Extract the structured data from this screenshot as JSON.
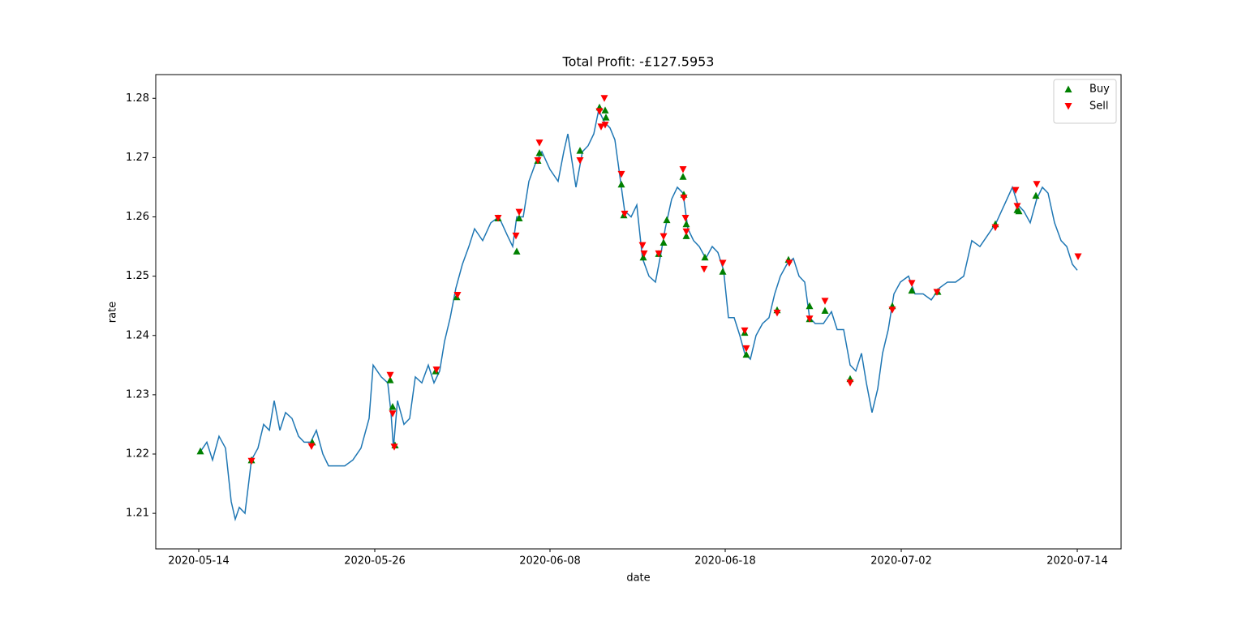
{
  "chart_data": {
    "type": "line",
    "title": "Total Profit: -£127.5953",
    "x_label": "date",
    "y_label": "rate",
    "xlim": [
      -53,
      1137
    ],
    "ylim": [
      1.204,
      1.284
    ],
    "xticks": [
      {
        "value": 0,
        "label": "2020-05-14"
      },
      {
        "value": 217,
        "label": "2020-05-26"
      },
      {
        "value": 433,
        "label": "2020-06-08"
      },
      {
        "value": 649,
        "label": "2020-06-18"
      },
      {
        "value": 866,
        "label": "2020-07-02"
      },
      {
        "value": 1083,
        "label": "2020-07-14"
      }
    ],
    "yticks": [
      1.21,
      1.22,
      1.23,
      1.24,
      1.25,
      1.26,
      1.27,
      1.28
    ],
    "legend": "upper right",
    "grid": false,
    "series": [
      {
        "type": "line",
        "color": "#1f77b4",
        "x": [
          0,
          10,
          17,
          25,
          33,
          40,
          45,
          50,
          57,
          65,
          73,
          80,
          87,
          93,
          100,
          107,
          115,
          123,
          130,
          138,
          145,
          153,
          160,
          170,
          180,
          190,
          200,
          210,
          215,
          225,
          233,
          237,
          240,
          245,
          253,
          260,
          267,
          275,
          283,
          290,
          297,
          303,
          310,
          317,
          325,
          333,
          340,
          350,
          360,
          370,
          380,
          387,
          392,
          400,
          407,
          415,
          423,
          433,
          443,
          450,
          455,
          465,
          473,
          480,
          487,
          493,
          500,
          507,
          513,
          520,
          525,
          533,
          540,
          547,
          555,
          563,
          570,
          575,
          583,
          590,
          597,
          603,
          610,
          617,
          625,
          633,
          640,
          647,
          653,
          660,
          667,
          673,
          680,
          687,
          695,
          703,
          710,
          717,
          725,
          733,
          740,
          747,
          753,
          760,
          770,
          780,
          787,
          795,
          803,
          810,
          817,
          823,
          830,
          837,
          843,
          850,
          857,
          865,
          875,
          883,
          893,
          903,
          913,
          923,
          933,
          943,
          953,
          963,
          973,
          983,
          993,
          1003,
          1010,
          1017,
          1025,
          1033,
          1040,
          1047,
          1055,
          1063,
          1070,
          1077,
          1083
        ],
        "values": [
          1.22,
          1.222,
          1.219,
          1.223,
          1.221,
          1.212,
          1.209,
          1.211,
          1.21,
          1.219,
          1.221,
          1.225,
          1.224,
          1.229,
          1.224,
          1.227,
          1.226,
          1.223,
          1.222,
          1.222,
          1.224,
          1.22,
          1.218,
          1.218,
          1.218,
          1.219,
          1.221,
          1.226,
          1.235,
          1.233,
          1.232,
          1.227,
          1.221,
          1.229,
          1.225,
          1.226,
          1.233,
          1.232,
          1.235,
          1.232,
          1.234,
          1.239,
          1.243,
          1.248,
          1.252,
          1.255,
          1.258,
          1.256,
          1.259,
          1.26,
          1.257,
          1.255,
          1.26,
          1.26,
          1.266,
          1.269,
          1.271,
          1.268,
          1.266,
          1.271,
          1.274,
          1.265,
          1.271,
          1.272,
          1.274,
          1.278,
          1.276,
          1.275,
          1.273,
          1.266,
          1.261,
          1.26,
          1.262,
          1.253,
          1.25,
          1.249,
          1.254,
          1.258,
          1.263,
          1.265,
          1.264,
          1.258,
          1.256,
          1.255,
          1.253,
          1.255,
          1.254,
          1.251,
          1.243,
          1.243,
          1.24,
          1.237,
          1.236,
          1.24,
          1.242,
          1.243,
          1.247,
          1.25,
          1.252,
          1.253,
          1.25,
          1.249,
          1.243,
          1.242,
          1.242,
          1.244,
          1.241,
          1.241,
          1.235,
          1.234,
          1.237,
          1.232,
          1.227,
          1.231,
          1.237,
          1.241,
          1.247,
          1.249,
          1.25,
          1.247,
          1.247,
          1.246,
          1.248,
          1.249,
          1.249,
          1.25,
          1.256,
          1.255,
          1.257,
          1.259,
          1.262,
          1.265,
          1.262,
          1.261,
          1.259,
          1.263,
          1.265,
          1.264,
          1.259,
          1.256,
          1.255,
          1.252,
          1.251
        ]
      },
      {
        "type": "scatter",
        "name": "Buy",
        "marker": "^",
        "color": "#008000",
        "x": [
          2,
          65,
          140,
          236,
          239,
          242,
          292,
          318,
          369,
          392,
          395,
          418,
          420,
          470,
          494,
          501,
          502,
          521,
          524,
          548,
          567,
          573,
          577,
          597,
          598,
          601,
          601,
          624,
          646,
          673,
          675,
          713,
          727,
          753,
          753,
          772,
          803,
          855,
          879,
          911,
          982,
          1009,
          1011,
          1032
        ],
        "values": [
          1.2205,
          1.219,
          1.222,
          1.2325,
          1.228,
          1.2215,
          1.234,
          1.2465,
          1.2598,
          1.2542,
          1.2598,
          1.2695,
          1.2708,
          1.2712,
          1.2785,
          1.278,
          1.2768,
          1.2655,
          1.2603,
          1.2532,
          1.2538,
          1.2557,
          1.2595,
          1.2668,
          1.2638,
          1.2588,
          1.2568,
          1.2532,
          1.2508,
          1.2405,
          1.2368,
          1.2443,
          1.2528,
          1.245,
          1.2428,
          1.2442,
          1.2327,
          1.245,
          1.2476,
          1.2474,
          1.2588,
          1.2612,
          1.261,
          1.2636
        ]
      },
      {
        "type": "scatter",
        "name": "Sell",
        "marker": "v",
        "color": "#ff0000",
        "x": [
          65,
          139,
          236,
          239,
          241,
          293,
          319,
          369,
          391,
          395,
          418,
          420,
          470,
          494,
          496,
          500,
          501,
          521,
          525,
          547,
          549,
          567,
          573,
          597,
          598,
          600,
          601,
          623,
          646,
          673,
          675,
          713,
          728,
          753,
          772,
          803,
          855,
          879,
          910,
          982,
          1007,
          1009,
          1033,
          1084
        ],
        "values": [
          1.2188,
          1.2213,
          1.2333,
          1.2268,
          1.2212,
          1.2342,
          1.2468,
          1.2598,
          1.2568,
          1.2608,
          1.2695,
          1.2725,
          1.2695,
          1.2778,
          1.2752,
          1.28,
          1.2755,
          1.2672,
          1.2605,
          1.2552,
          1.2538,
          1.2538,
          1.2567,
          1.268,
          1.2632,
          1.2598,
          1.2575,
          1.2512,
          1.2522,
          1.2408,
          1.2378,
          1.2438,
          1.2522,
          1.2428,
          1.2458,
          1.232,
          1.2443,
          1.2488,
          1.2473,
          1.2582,
          1.2645,
          1.2618,
          1.2655,
          1.2533
        ]
      }
    ]
  }
}
